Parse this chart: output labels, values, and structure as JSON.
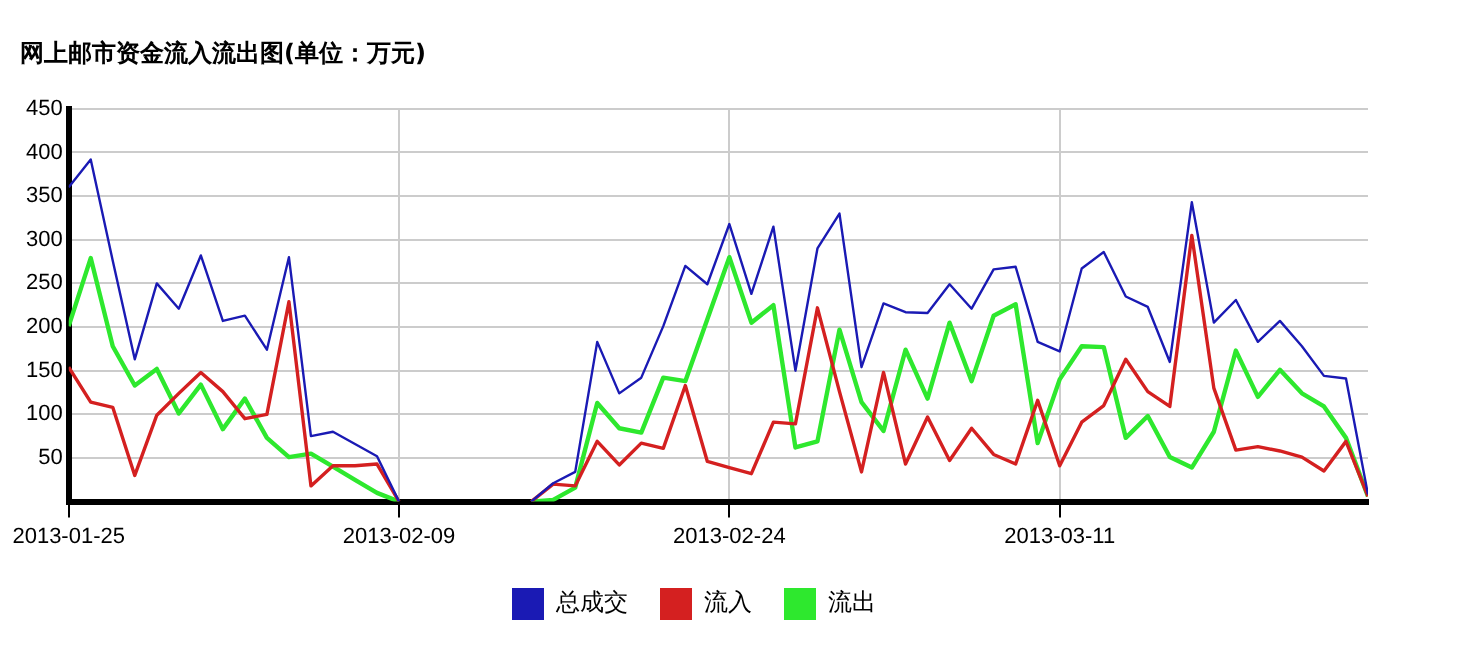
{
  "chart_data": {
    "type": "line",
    "title": "网上邮市资金流入流出图(单位：万元)",
    "x": [
      "2013-01-25",
      "2013-01-26",
      "2013-01-27",
      "2013-01-28",
      "2013-01-29",
      "2013-01-30",
      "2013-01-31",
      "2013-02-01",
      "2013-02-02",
      "2013-02-03",
      "2013-02-04",
      "2013-02-05",
      "2013-02-06",
      "2013-02-07",
      "2013-02-08",
      "2013-02-09",
      "2013-02-10",
      "2013-02-11",
      "2013-02-12",
      "2013-02-13",
      "2013-02-14",
      "2013-02-15",
      "2013-02-16",
      "2013-02-17",
      "2013-02-18",
      "2013-02-19",
      "2013-02-20",
      "2013-02-21",
      "2013-02-22",
      "2013-02-23",
      "2013-02-24",
      "2013-02-25",
      "2013-02-26",
      "2013-02-27",
      "2013-02-28",
      "2013-03-01",
      "2013-03-02",
      "2013-03-03",
      "2013-03-04",
      "2013-03-05",
      "2013-03-06",
      "2013-03-07",
      "2013-03-08",
      "2013-03-09",
      "2013-03-10",
      "2013-03-11",
      "2013-03-12",
      "2013-03-13",
      "2013-03-14",
      "2013-03-15",
      "2013-03-16",
      "2013-03-17",
      "2013-03-18",
      "2013-03-19",
      "2013-03-20",
      "2013-03-21",
      "2013-03-22",
      "2013-03-23",
      "2013-03-24",
      "2013-03-25"
    ],
    "series": [
      {
        "name": "总成交",
        "color": "#1a1ab4",
        "values": [
          360,
          392,
          276,
          163,
          250,
          221,
          282,
          207,
          213,
          174,
          280,
          75,
          80,
          66,
          52,
          0,
          null,
          null,
          null,
          null,
          null,
          0,
          21,
          34,
          183,
          124,
          142,
          201,
          270,
          249,
          318,
          238,
          315,
          150,
          290,
          330,
          154,
          227,
          217,
          216,
          249,
          221,
          266,
          269,
          183,
          172,
          267,
          286,
          235,
          223,
          160,
          343,
          205,
          231,
          183,
          207,
          178,
          144,
          141,
          8
        ]
      },
      {
        "name": "流入",
        "color": "#d42020",
        "values": [
          154,
          114,
          108,
          30,
          99,
          124,
          148,
          126,
          95,
          100,
          229,
          18,
          41,
          41,
          43,
          0,
          null,
          null,
          null,
          null,
          null,
          0,
          20,
          18,
          69,
          42,
          67,
          61,
          133,
          46,
          39,
          32,
          91,
          89,
          222,
          126,
          34,
          148,
          43,
          97,
          47,
          84,
          54,
          43,
          116,
          41,
          91,
          110,
          163,
          126,
          109,
          305,
          130,
          59,
          63,
          58,
          51,
          35,
          69,
          6
        ]
      },
      {
        "name": "流出",
        "color": "#2ee82e",
        "values": [
          201,
          279,
          178,
          133,
          152,
          101,
          134,
          83,
          118,
          73,
          51,
          55,
          40,
          25,
          10,
          0,
          null,
          null,
          null,
          null,
          null,
          0,
          2,
          16,
          113,
          84,
          79,
          142,
          138,
          209,
          280,
          205,
          225,
          62,
          69,
          197,
          114,
          81,
          174,
          118,
          205,
          138,
          213,
          226,
          67,
          140,
          178,
          177,
          73,
          98,
          51,
          39,
          80,
          173,
          120,
          151,
          124,
          109,
          73,
          6
        ]
      }
    ],
    "xlim": [
      "2013-01-25",
      "2013-03-25"
    ],
    "xticks": [
      "2013-01-25",
      "2013-02-09",
      "2013-02-24",
      "2013-03-11"
    ],
    "ylim": [
      0,
      450
    ],
    "yticks": [
      50,
      100,
      150,
      200,
      250,
      300,
      350,
      400,
      450
    ],
    "grid": true,
    "legend": "bottom",
    "marker": "none",
    "line_style": "solid"
  }
}
